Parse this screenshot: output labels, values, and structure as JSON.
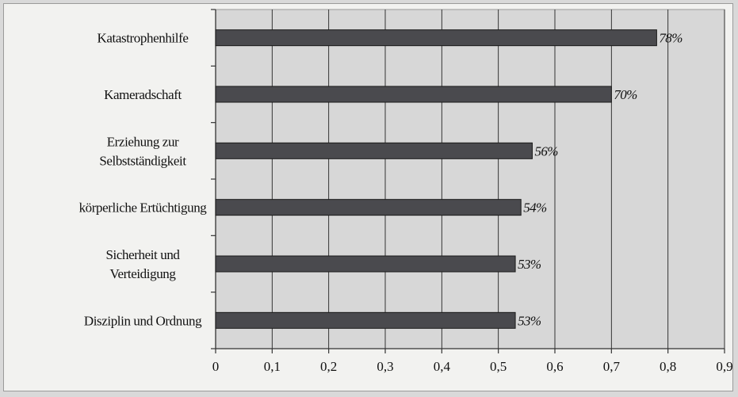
{
  "chart_data": {
    "type": "bar",
    "orientation": "horizontal",
    "categories": [
      "Katastrophenhilfe",
      "Kameradschaft",
      "Erziehung zur Selbstständigkeit",
      "körperliche Ertüchtigung",
      "Sicherheit und Verteidigung",
      "Disziplin und Ordnung"
    ],
    "category_lines": [
      [
        "Katastrophenhilfe"
      ],
      [
        "Kameradschaft"
      ],
      [
        "Erziehung zur",
        "Selbstständigkeit"
      ],
      [
        "körperliche Ertüchtigung"
      ],
      [
        "Sicherheit und",
        "Verteidigung"
      ],
      [
        "Disziplin und Ordnung"
      ]
    ],
    "values": [
      0.78,
      0.7,
      0.56,
      0.54,
      0.53,
      0.53
    ],
    "data_labels": [
      "78%",
      "70%",
      "56%",
      "54%",
      "53%",
      "53%"
    ],
    "xlim": [
      0,
      0.9
    ],
    "xticks": [
      0,
      0.1,
      0.2,
      0.3,
      0.4,
      0.5,
      0.6,
      0.7,
      0.8,
      0.9
    ],
    "xtick_labels": [
      "0",
      "0,1",
      "0,2",
      "0,3",
      "0,4",
      "0,5",
      "0,6",
      "0,7",
      "0,8",
      "0,9"
    ],
    "title": "",
    "xlabel": "",
    "ylabel": "",
    "grid": "vertical",
    "legend": "none",
    "colors": {
      "bar_fill": "#4a4a4e",
      "bar_stroke": "#1a1a1a",
      "plot_bg": "#d7d7d7",
      "gridline": "#222222",
      "axis": "#333333"
    }
  }
}
